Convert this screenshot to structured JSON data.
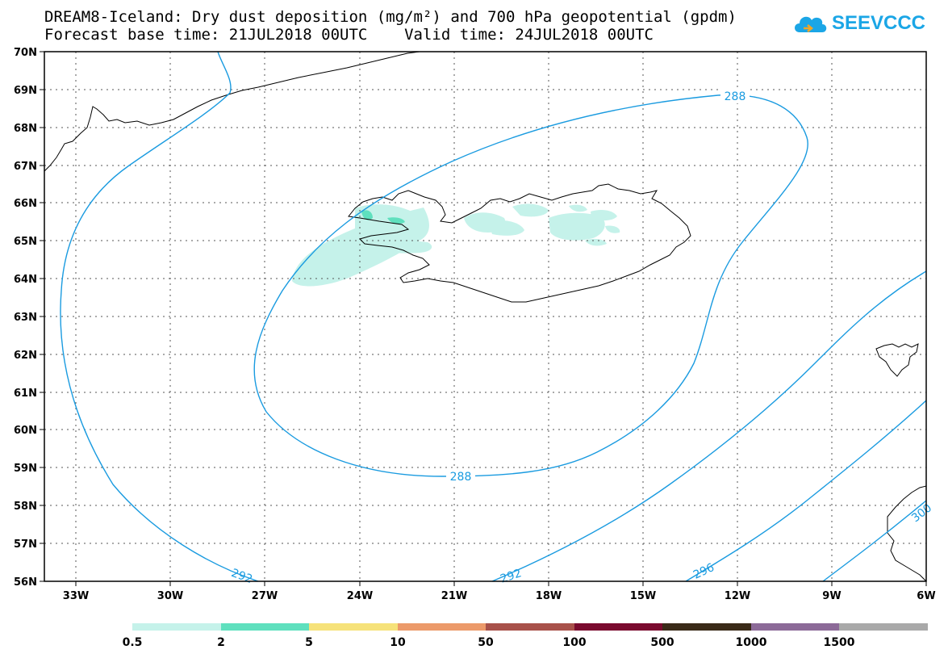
{
  "title": {
    "line1": "DREAM8-Iceland: Dry dust deposition (mg/m²) and 700 hPa geopotential (gpdm)",
    "line2": "Forecast base time: 21JUL2018 00UTC    Valid time: 24JUL2018 00UTC"
  },
  "logo": {
    "text": "SEEVCCC",
    "icon": "cloud-icon",
    "color": "#1ba6e6"
  },
  "map": {
    "lat_labels": [
      "70N",
      "69N",
      "68N",
      "67N",
      "66N",
      "65N",
      "64N",
      "63N",
      "62N",
      "61N",
      "60N",
      "59N",
      "58N",
      "57N",
      "56N"
    ],
    "lon_labels": [
      "33W",
      "30W",
      "27W",
      "24W",
      "21W",
      "18W",
      "15W",
      "12W",
      "9W",
      "6W"
    ],
    "contour_color": "#1a9be0",
    "contour_labels": [
      {
        "text": "288",
        "value": 288
      },
      {
        "text": "288",
        "value": 288
      },
      {
        "text": "292",
        "value": 292
      },
      {
        "text": "292",
        "value": 292
      },
      {
        "text": "296",
        "value": 296
      },
      {
        "text": "300",
        "value": 300
      }
    ]
  },
  "legend": {
    "thresholds": [
      "0.5",
      "2",
      "5",
      "10",
      "50",
      "100",
      "500",
      "1000",
      "1500"
    ],
    "colors": [
      "#c5f2ea",
      "#5fe0be",
      "#f6e27a",
      "#ec9a6a",
      "#a8514a",
      "#7a0a2e",
      "#3a2a18",
      "#8c6a98",
      "#a9a9a9"
    ]
  }
}
